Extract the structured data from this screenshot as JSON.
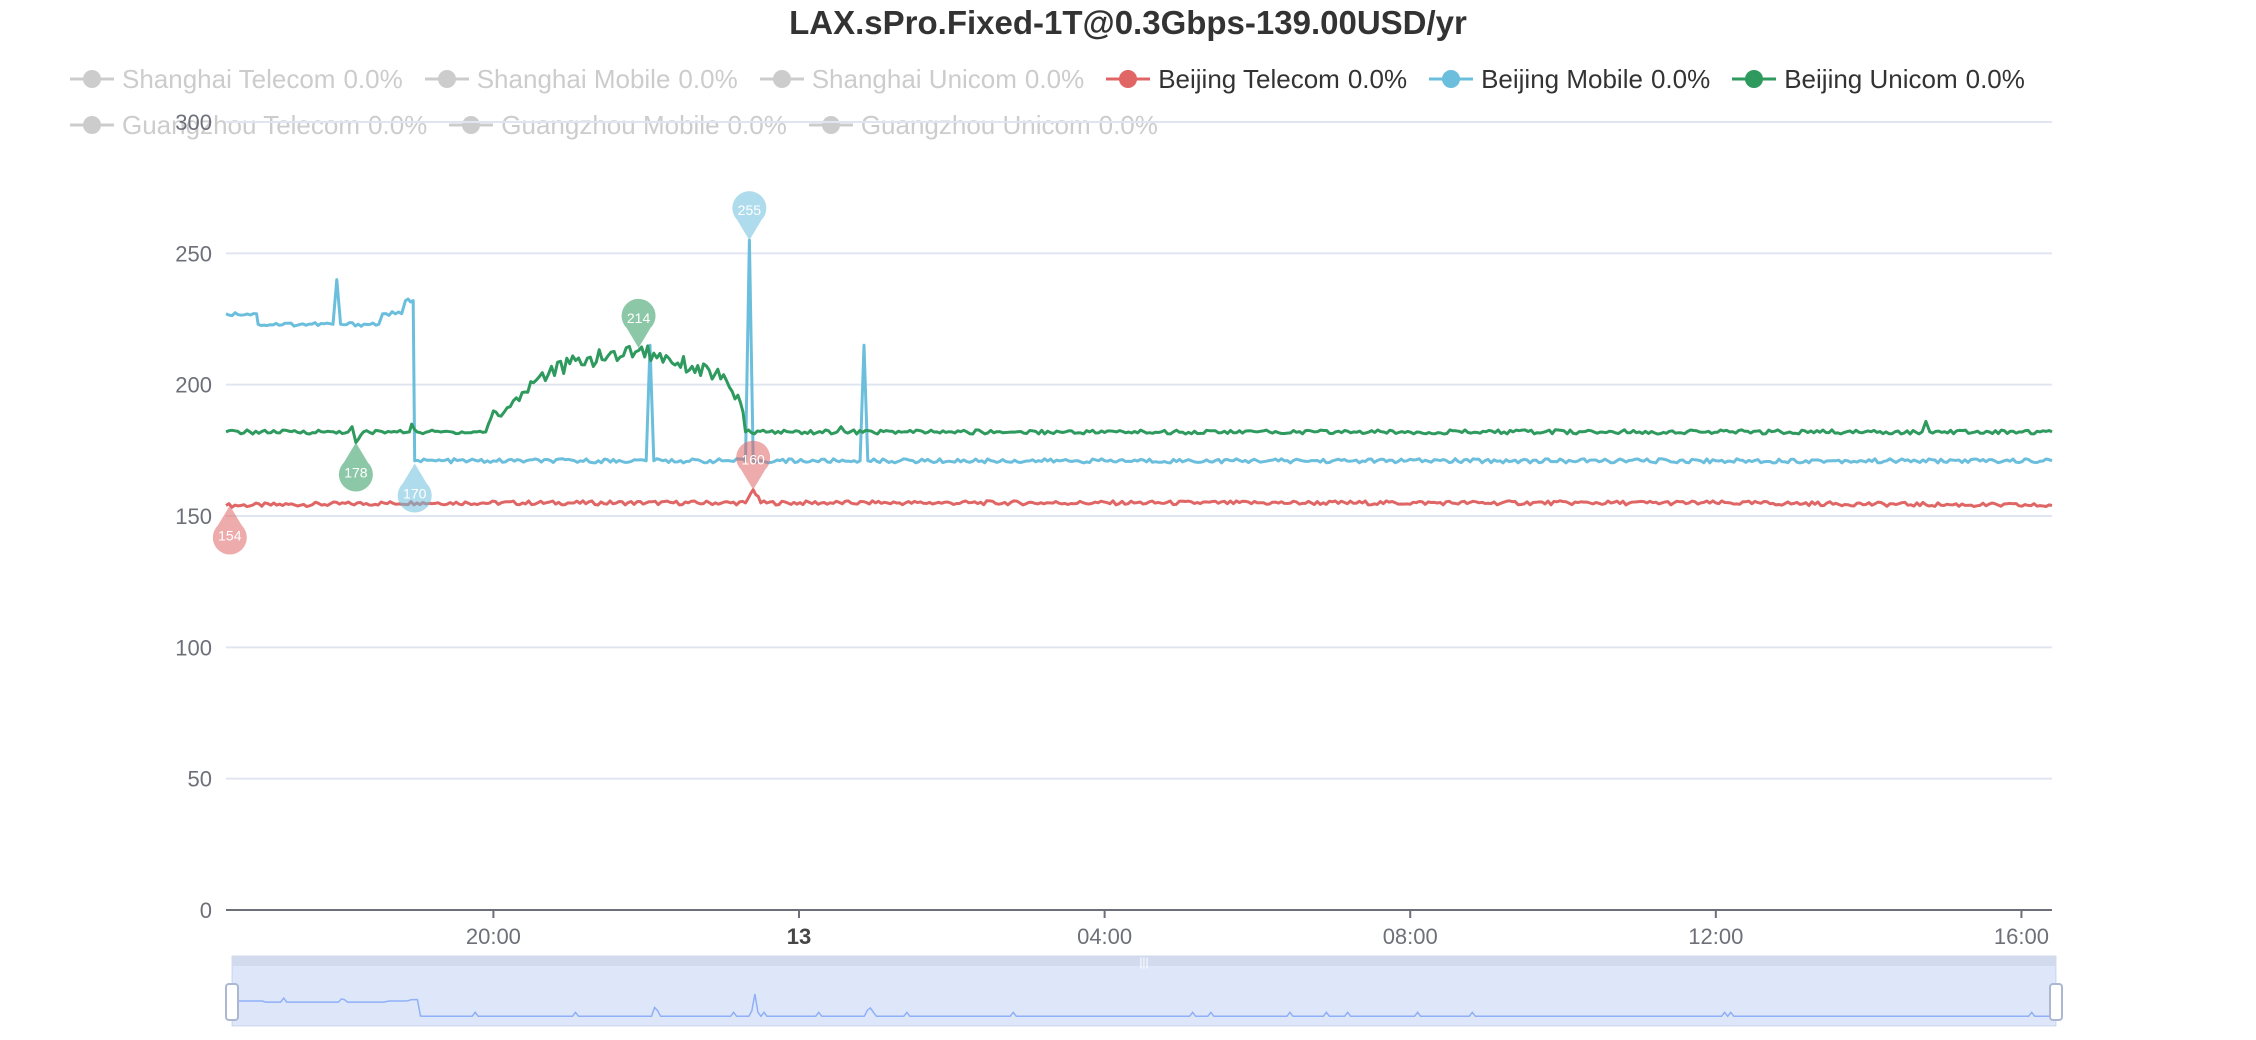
{
  "chart_data": {
    "type": "line",
    "title": "LAX.sPro.Fixed-1T@0.3Gbps-139.00USD/yr",
    "xlabel": "",
    "ylabel": "",
    "ylim": [
      0,
      300
    ],
    "yticks": [
      0,
      50,
      100,
      150,
      200,
      250,
      300
    ],
    "x_range_hours": [
      16.5,
      40.4
    ],
    "xticks": [
      {
        "h": 20,
        "label": "20:00",
        "bold": false
      },
      {
        "h": 24,
        "label": "13",
        "bold": true
      },
      {
        "h": 28,
        "label": "04:00",
        "bold": false
      },
      {
        "h": 32,
        "label": "08:00",
        "bold": false
      },
      {
        "h": 36,
        "label": "12:00",
        "bold": false
      },
      {
        "h": 40,
        "label": "16:00",
        "bold": false
      }
    ],
    "grid": true,
    "legend": "top",
    "series": [
      {
        "name": "Shanghai Telecom",
        "loss": "0.0%",
        "active": false,
        "color": "#cccccc",
        "values": []
      },
      {
        "name": "Shanghai Mobile",
        "loss": "0.0%",
        "active": false,
        "color": "#cccccc",
        "values": []
      },
      {
        "name": "Shanghai Unicom",
        "loss": "0.0%",
        "active": false,
        "color": "#cccccc",
        "values": []
      },
      {
        "name": "Beijing Telecom",
        "loss": "0.0%",
        "active": true,
        "color": "#e06666",
        "values": [
          [
            16.5,
            154
          ],
          [
            19.0,
            155
          ],
          [
            22.0,
            155
          ],
          [
            23.3,
            155
          ],
          [
            23.4,
            160
          ],
          [
            23.5,
            155
          ],
          [
            25.0,
            155
          ],
          [
            30.0,
            155
          ],
          [
            36.0,
            155
          ],
          [
            40.4,
            154
          ]
        ],
        "min": {
          "h": 16.55,
          "v": 154,
          "label": "154"
        },
        "max": {
          "h": 23.4,
          "v": 160,
          "label": "160"
        }
      },
      {
        "name": "Beijing Mobile",
        "loss": "0.0%",
        "active": true,
        "color": "#6bbfdc",
        "values": [
          [
            16.5,
            227
          ],
          [
            16.9,
            227
          ],
          [
            16.92,
            223
          ],
          [
            17.9,
            223
          ],
          [
            17.95,
            240
          ],
          [
            18.0,
            223
          ],
          [
            18.5,
            223
          ],
          [
            18.55,
            227
          ],
          [
            18.8,
            227
          ],
          [
            18.85,
            232
          ],
          [
            18.95,
            232
          ],
          [
            18.97,
            171
          ],
          [
            20.0,
            171
          ],
          [
            22.0,
            171
          ],
          [
            22.05,
            215
          ],
          [
            22.1,
            171
          ],
          [
            23.3,
            171
          ],
          [
            23.35,
            255
          ],
          [
            23.4,
            171
          ],
          [
            24.8,
            171
          ],
          [
            24.85,
            215
          ],
          [
            24.9,
            171
          ],
          [
            30.0,
            171
          ],
          [
            36.0,
            171
          ],
          [
            40.4,
            171
          ]
        ],
        "min": {
          "h": 18.97,
          "v": 170,
          "label": "170"
        },
        "max": {
          "h": 23.35,
          "v": 255,
          "label": "255"
        }
      },
      {
        "name": "Beijing Unicom",
        "loss": "0.0%",
        "active": true,
        "color": "#2e9a5e",
        "values": [
          [
            16.5,
            182
          ],
          [
            18.1,
            182
          ],
          [
            18.15,
            184
          ],
          [
            18.2,
            178
          ],
          [
            18.3,
            182
          ],
          [
            18.9,
            182
          ],
          [
            18.93,
            185
          ],
          [
            19.0,
            182
          ],
          [
            19.9,
            182
          ],
          [
            20.0,
            190
          ],
          [
            20.1,
            188
          ],
          [
            20.3,
            195
          ],
          [
            20.6,
            203
          ],
          [
            21.0,
            208
          ],
          [
            21.5,
            211
          ],
          [
            21.9,
            213
          ],
          [
            22.3,
            210
          ],
          [
            22.6,
            207
          ],
          [
            22.9,
            204
          ],
          [
            23.2,
            196
          ],
          [
            23.3,
            182
          ],
          [
            24.5,
            182
          ],
          [
            24.55,
            184
          ],
          [
            24.6,
            182
          ],
          [
            26.0,
            182
          ],
          [
            30.0,
            182
          ],
          [
            35.0,
            182
          ],
          [
            38.7,
            182
          ],
          [
            38.75,
            186
          ],
          [
            38.8,
            182
          ],
          [
            40.4,
            182
          ]
        ],
        "min": {
          "h": 18.2,
          "v": 178,
          "label": "178"
        },
        "max": {
          "h": 21.9,
          "v": 214,
          "label": "214"
        }
      },
      {
        "name": "Guangzhou Telecom",
        "loss": "0.0%",
        "active": false,
        "color": "#cccccc",
        "values": []
      },
      {
        "name": "Guangzhou Mobile",
        "loss": "0.0%",
        "active": false,
        "color": "#cccccc",
        "values": []
      },
      {
        "name": "Guangzhou Unicom",
        "loss": "0.0%",
        "active": false,
        "color": "#cccccc",
        "values": []
      }
    ],
    "datazoom": {
      "start_percent": 0,
      "end_percent": 100
    }
  }
}
